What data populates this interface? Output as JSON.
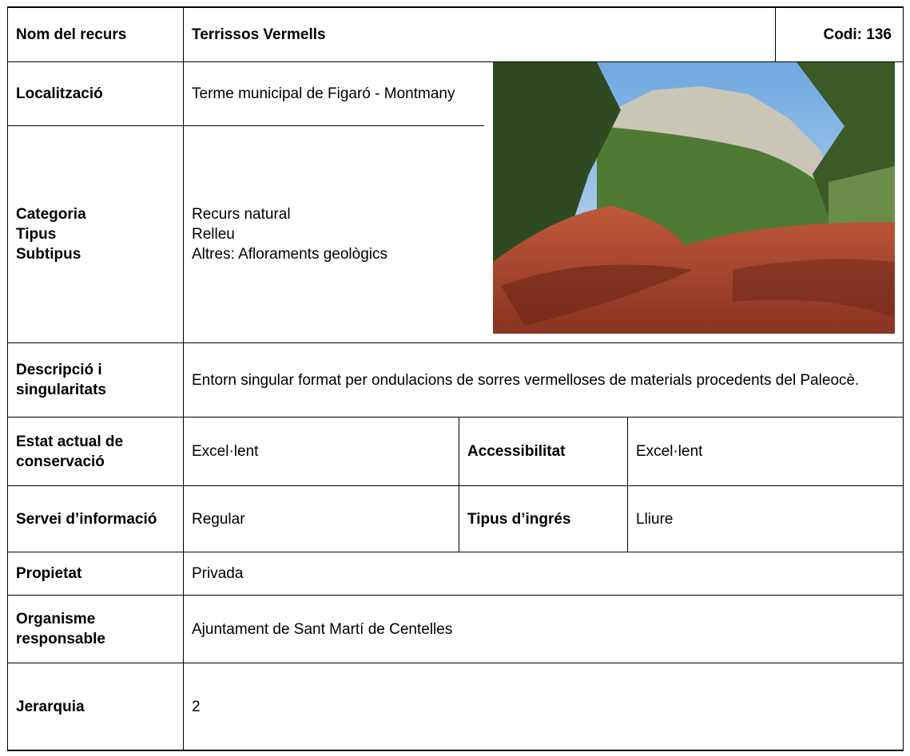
{
  "header": {
    "label": "Nom del recurs",
    "name": "Terrissos Vermells",
    "code": "Codi: 136"
  },
  "location": {
    "label": "Localització",
    "value": "Terme municipal de Figaró - Montmany"
  },
  "classification": {
    "labels": [
      "Categoria",
      "Tipus",
      "Subtipus"
    ],
    "values": [
      "Recurs natural",
      "Relleu",
      "Altres: Afloraments geològics"
    ]
  },
  "description": {
    "label": "Descripció i singularitats",
    "value": "Entorn singular format per ondulacions de sorres vermelloses de materials procedents del Paleocè."
  },
  "conservation": {
    "label": "Estat actual de conservació",
    "value": "Excel·lent"
  },
  "accessibility": {
    "label": "Accessibilitat",
    "value": "Excel·lent"
  },
  "information_service": {
    "label": "Servei d’informació",
    "value": "Regular"
  },
  "entry_type": {
    "label": "Tipus d’ingrés",
    "value": "Lliure"
  },
  "ownership": {
    "label": "Propietat",
    "value": "Privada"
  },
  "responsible": {
    "label": "Organisme responsable",
    "value": "Ajuntament de Sant Martí de Centelles"
  },
  "hierarchy": {
    "label": "Jerarquia",
    "value": 2
  }
}
